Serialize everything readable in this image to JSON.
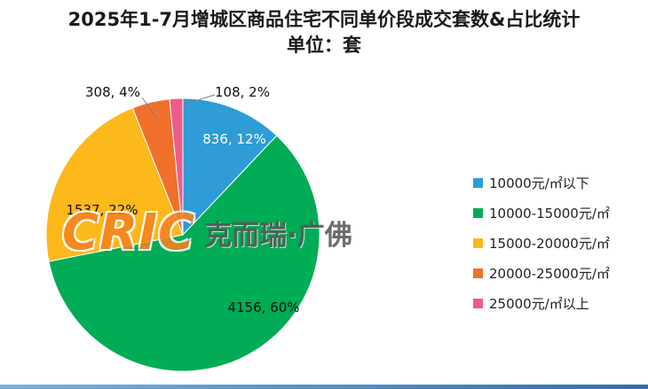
{
  "watermark": {
    "brand": "CRIC",
    "name": "克而瑞·广佛"
  },
  "chart_data": {
    "type": "pie",
    "title": "2025年1-7月增城区商品住宅不同单价段成交套数&占比统计",
    "unit_label": "单位：套",
    "categories": [
      "10000元/㎡以下",
      "10000-15000元/㎡",
      "15000-20000元/㎡",
      "20000-25000元/㎡",
      "25000元/㎡以上"
    ],
    "values": [
      836,
      4156,
      1537,
      308,
      108
    ],
    "percents": [
      12,
      60,
      22,
      4,
      2
    ],
    "data_labels": [
      "836, 12%",
      "4156, 60%",
      "1537, 22%",
      "308, 4%",
      "108, 2%"
    ],
    "colors": [
      "#2E9CD6",
      "#00AC55",
      "#FDB81C",
      "#F0702B",
      "#EE5B8D"
    ],
    "legend_position": "right",
    "start_angle_deg": 0,
    "direction": "clockwise"
  }
}
